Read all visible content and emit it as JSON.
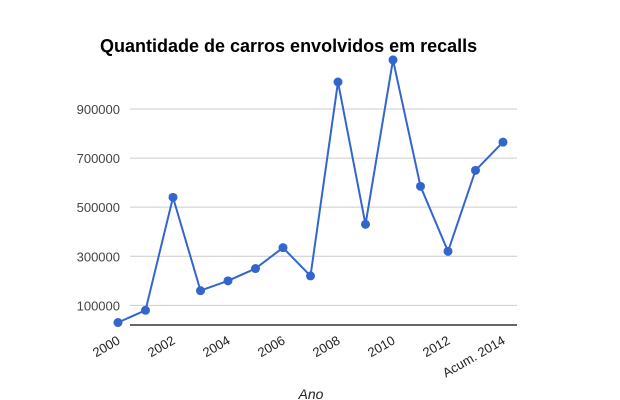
{
  "chart_data": {
    "type": "line",
    "title": "Quantidade de carros envolvidos em recalls",
    "xlabel": "Ano",
    "ylabel": "",
    "x": [
      "2000",
      "2001",
      "2002",
      "2003",
      "2004",
      "2005",
      "2006",
      "2007",
      "2008",
      "2009",
      "2010",
      "2011",
      "2012",
      "2013",
      "Acum. 2014"
    ],
    "x_tick_labels": [
      "2000",
      "",
      "2002",
      "",
      "2004",
      "",
      "2006",
      "",
      "2008",
      "",
      "2010",
      "",
      "2012",
      "",
      "Acum. 2014"
    ],
    "series": [
      {
        "values": [
          30000,
          80000,
          540000,
          160000,
          200000,
          250000,
          335000,
          220000,
          1010000,
          430000,
          1100000,
          585000,
          320000,
          650000,
          765000
        ]
      }
    ],
    "y_ticks": [
      100000,
      300000,
      500000,
      700000,
      900000
    ],
    "y_tick_labels": [
      "100000",
      "300000",
      "500000",
      "700000",
      "900000"
    ],
    "ylim": [
      20000,
      1120000
    ],
    "grid": true,
    "legend": "none",
    "colors": {
      "line": "#3366cc",
      "grid": "#cccccc",
      "axis": "#333333"
    }
  }
}
